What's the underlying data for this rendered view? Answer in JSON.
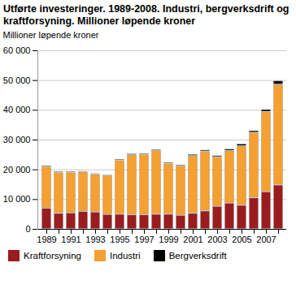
{
  "chart_data": {
    "type": "bar",
    "title": "Utførte investeringer. 1989-2008. Industri, bergverksdrift og kraftforsyning. Millioner løpende kroner",
    "y_label": "Millioner løpende kroner",
    "stacked": true,
    "grid": true,
    "legend": "bottom",
    "categories": [
      "1989",
      null,
      "1991",
      null,
      "1993",
      null,
      "1995",
      null,
      "1997",
      null,
      "1999",
      null,
      "2001",
      null,
      "2003",
      null,
      "2005",
      null,
      "2007",
      null
    ],
    "series": [
      {
        "name": "Kraftforsyning",
        "color": "#9b1c1f",
        "values": [
          7000,
          5300,
          5400,
          5900,
          5700,
          4900,
          5000,
          4800,
          4800,
          5000,
          5000,
          4600,
          5300,
          6100,
          7600,
          8700,
          8000,
          10500,
          12500,
          14800
        ]
      },
      {
        "name": "Industri",
        "color": "#f5a031",
        "values": [
          13900,
          13700,
          13600,
          13300,
          12700,
          13100,
          18100,
          20100,
          20200,
          21400,
          17000,
          16600,
          19300,
          20000,
          16600,
          17600,
          19900,
          21900,
          26900,
          33800
        ]
      },
      {
        "name": "Bergverksdrift",
        "color": "#000000",
        "values": [
          400,
          300,
          300,
          300,
          300,
          300,
          400,
          400,
          400,
          400,
          400,
          400,
          500,
          500,
          500,
          600,
          700,
          700,
          800,
          1200
        ]
      }
    ],
    "ylim": [
      0,
      60000
    ],
    "yticks": [
      0,
      {
        "value": 10000,
        "label": "10 000"
      },
      {
        "value": 20000,
        "label": "20 000"
      },
      {
        "value": 30000,
        "label": "30 000"
      },
      {
        "value": 40000,
        "label": "40 000"
      },
      {
        "value": 50000,
        "label": "50 000"
      },
      {
        "value": 60000,
        "label": "60 000"
      }
    ]
  }
}
